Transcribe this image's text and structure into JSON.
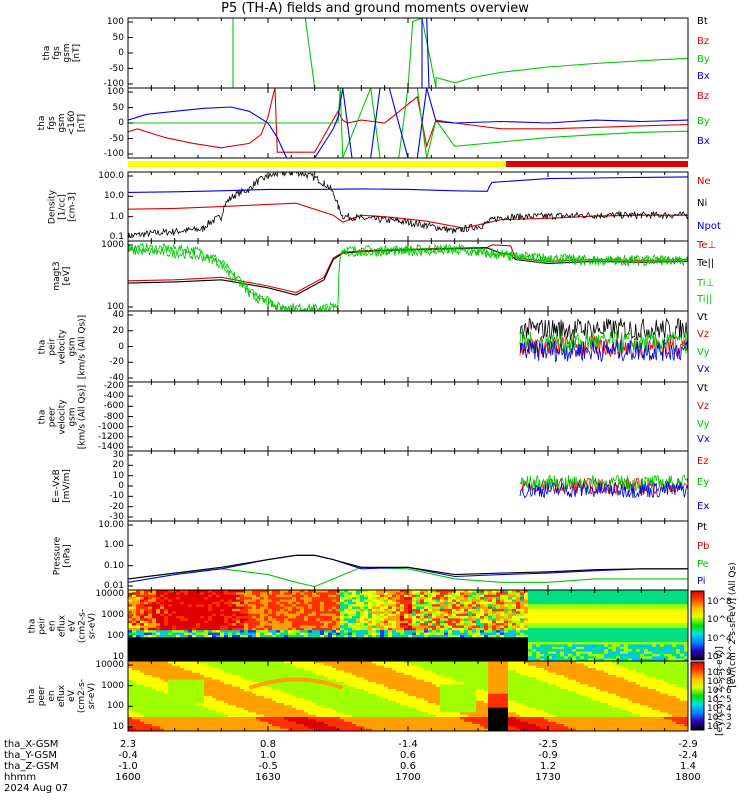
{
  "title": "P5 (TH-A) fields and ground moments overview",
  "x_axis": {
    "rows": [
      {
        "label": "tha_X-GSM",
        "values": [
          "2.3",
          "0.8",
          "-1.4",
          "-2.5",
          "-2.9"
        ]
      },
      {
        "label": "tha_Y-GSM",
        "values": [
          "-0.4",
          "1.0",
          "0.6",
          "-0.9",
          "-2.4"
        ]
      },
      {
        "label": "tha_Z-GSM",
        "values": [
          "-1.0",
          "-0.5",
          "0.6",
          "1.2",
          "1.4"
        ]
      },
      {
        "label": "hhmm",
        "values": [
          "1600",
          "1630",
          "1700",
          "1730",
          "1800"
        ]
      }
    ],
    "date": "2024 Aug 07",
    "range_minutes": [
      0,
      120
    ]
  },
  "colors": {
    "black": "#000000",
    "red": "#e00000",
    "green": "#00c800",
    "blue": "#0000e0",
    "yellow": "#ffff00"
  },
  "chart_data": [
    {
      "type": "line",
      "panel": "B fgs",
      "ylabel": "tha\nfgs\ngsm\n[nT]",
      "yticks": [
        "100",
        "50",
        "0",
        "-50",
        "-100"
      ],
      "ylim": [
        -100,
        100
      ],
      "legend": [
        "Bt",
        "Bz",
        "By",
        "Bx"
      ],
      "series": [
        {
          "name": "By",
          "x": [
            0,
            22.5,
            22.5,
            38,
            40,
            60,
            61,
            63,
            66,
            66,
            70,
            74,
            80,
            90,
            100,
            110,
            120
          ],
          "y": [
            -100,
            -100,
            100,
            100,
            -100,
            -100,
            90,
            100,
            -100,
            -70,
            -85,
            -70,
            -55,
            -40,
            -30,
            -22,
            -15
          ]
        },
        {
          "name": "Bx",
          "x": [
            0,
            63,
            63,
            64,
            64.5,
            120
          ],
          "y": [
            -100,
            -100,
            100,
            100,
            -100,
            -100
          ]
        }
      ]
    },
    {
      "type": "line",
      "panel": "B fgs zoom",
      "ylabel": "tha\nfgs\ngsm\n<160\n[nT]",
      "yticks": [
        "100",
        "50",
        "0",
        "-50",
        "-100"
      ],
      "ylim": [
        -120,
        120
      ],
      "legend": [
        "Bz",
        "By",
        "Bx"
      ],
      "series": [
        {
          "name": "Bz",
          "x": [
            0,
            2,
            8,
            14,
            20,
            26,
            28.5,
            30,
            31,
            31.5,
            32,
            40,
            45,
            46,
            47,
            50,
            55,
            62,
            64,
            66,
            70,
            80,
            90,
            100,
            110,
            120
          ],
          "y": [
            -30,
            -20,
            -50,
            -70,
            -85,
            -70,
            -40,
            20,
            90,
            120,
            -100,
            -100,
            40,
            10,
            0,
            10,
            0,
            90,
            -80,
            10,
            0,
            -20,
            -20,
            -15,
            -10,
            -5
          ]
        },
        {
          "name": "By",
          "x": [
            0,
            45,
            45.5,
            46,
            52,
            54,
            58,
            60,
            62,
            64,
            66,
            70,
            80,
            90,
            100,
            110,
            120
          ],
          "y": [
            0,
            0,
            120,
            -120,
            120,
            -120,
            -120,
            120,
            120,
            -120,
            10,
            -80,
            -65,
            -50,
            -40,
            -32,
            -28
          ]
        },
        {
          "name": "Bx",
          "x": [
            0,
            4,
            10,
            16,
            22,
            26,
            30,
            32,
            34,
            40,
            44,
            45,
            46,
            48,
            52,
            54,
            56,
            60,
            62,
            64,
            66,
            70,
            80,
            90,
            100,
            110,
            120
          ],
          "y": [
            10,
            30,
            40,
            50,
            55,
            40,
            0,
            -50,
            -120,
            -120,
            -20,
            20,
            120,
            -120,
            -120,
            120,
            120,
            -120,
            -120,
            120,
            5,
            0,
            5,
            0,
            10,
            5,
            10
          ]
        }
      ]
    },
    {
      "type": "line",
      "panel": "Density",
      "ylabel": "Density\n[1/cc]\n[cm-3]",
      "yticks": [
        "100.0",
        "10.0",
        "1.0",
        "0.1"
      ],
      "ylim": [
        0.05,
        150
      ],
      "yscale": "log",
      "legend": [
        "Ne",
        "Ni",
        "Npot"
      ],
      "series": [
        {
          "name": "Ne",
          "x": [
            0,
            10,
            20,
            30,
            36,
            44,
            46,
            50,
            56,
            64,
            72,
            80,
            90,
            100,
            110,
            120
          ],
          "y": [
            2.0,
            2.2,
            2.7,
            3.5,
            4.0,
            1.0,
            0.45,
            1.0,
            0.8,
            0.5,
            0.22,
            0.6,
            0.7,
            0.9,
            1.0,
            1.0
          ]
        },
        {
          "name": "Ni",
          "x": [
            0,
            10,
            16,
            20,
            26,
            32,
            36,
            42,
            44,
            45,
            46,
            50,
            58,
            64,
            70,
            76,
            80,
            90,
            100,
            110,
            120
          ],
          "y": [
            0.09,
            0.15,
            0.2,
            0.8,
            20,
            120,
            150,
            40,
            12,
            2.5,
            0.9,
            0.7,
            0.5,
            0.3,
            0.15,
            0.3,
            0.8,
            0.9,
            1.0,
            1.0,
            1.0
          ]
        },
        {
          "name": "Npot",
          "x": [
            0,
            10,
            20,
            30,
            40,
            50,
            60,
            70,
            77,
            77.5,
            78,
            90,
            100,
            110,
            120
          ],
          "y": [
            14,
            15,
            17,
            20,
            20,
            21,
            20,
            17,
            16,
            30,
            45,
            70,
            75,
            80,
            85
          ]
        }
      ]
    },
    {
      "type": "line",
      "panel": "Temperature",
      "ylabel": "magt3\n[eV]",
      "yticks": [
        "1000",
        "100"
      ],
      "ylim": [
        8,
        3500
      ],
      "yscale": "log",
      "legend": [
        "Te⊥",
        "Te||",
        "Ti⊥",
        "Ti||"
      ],
      "series": [
        {
          "name": "Te⊥",
          "x": [
            0,
            10,
            20,
            30,
            36,
            42,
            44,
            46,
            50,
            60,
            70,
            77,
            78,
            82,
            83,
            90,
            100,
            110,
            120
          ],
          "y": [
            110,
            120,
            150,
            70,
            40,
            150,
            800,
            1300,
            1500,
            1700,
            1900,
            2000,
            2500,
            2300,
            800,
            600,
            700,
            650,
            700
          ]
        },
        {
          "name": "Te||",
          "x": [
            0,
            10,
            20,
            30,
            36,
            42,
            44,
            46,
            50,
            60,
            70,
            77,
            80,
            82,
            83,
            90,
            100,
            110,
            120
          ],
          "y": [
            90,
            100,
            120,
            60,
            32,
            120,
            700,
            1200,
            1400,
            1600,
            1800,
            1900,
            1200,
            1100,
            700,
            500,
            600,
            550,
            600
          ]
        },
        {
          "name": "Ti⊥",
          "x": [
            0,
            10,
            14,
            18,
            22,
            26,
            32,
            40,
            45,
            46,
            50,
            60,
            70,
            75,
            82,
            90,
            100,
            110,
            120
          ],
          "y": [
            2000,
            1800,
            1600,
            900,
            200,
            40,
            12,
            10,
            12,
            1600,
            1600,
            1700,
            1800,
            1500,
            1000,
            800,
            700,
            700,
            700
          ]
        },
        {
          "name": "Ti||",
          "x": [
            0,
            10,
            14,
            18,
            22,
            26,
            32,
            40,
            45,
            46,
            50,
            60,
            70,
            75,
            82,
            90,
            100,
            110,
            120
          ],
          "y": [
            1500,
            1200,
            1000,
            700,
            150,
            30,
            10,
            9,
            10,
            1200,
            1300,
            1400,
            1500,
            1200,
            900,
            700,
            600,
            600,
            600
          ]
        }
      ]
    },
    {
      "type": "line",
      "panel": "peir velocity",
      "ylabel": "tha\npeir\nvelocity\ngsm\n[km/s (All Qs)]",
      "yticks": [
        "40",
        "20",
        "0",
        "-20",
        "-40"
      ],
      "ylim": [
        -45,
        45
      ],
      "legend": [
        "Vt",
        "Vz",
        "Vy",
        "Vx"
      ],
      "series": [
        {
          "name": "Vt",
          "x": [
            84,
            120
          ],
          "y": [
            22,
            22
          ]
        },
        {
          "name": "Vz",
          "x": [
            84,
            120
          ],
          "y": [
            0,
            0
          ]
        },
        {
          "name": "Vy",
          "x": [
            84,
            120
          ],
          "y": [
            5,
            5
          ]
        },
        {
          "name": "Vx",
          "x": [
            84,
            120
          ],
          "y": [
            -5,
            -5
          ]
        }
      ]
    },
    {
      "type": "line",
      "panel": "peer velocity",
      "ylabel": "tha\npeer\nvelocity\ngsm\n[km/s (All Qs)]",
      "yticks": [
        "-200",
        "-400",
        "-600",
        "-800",
        "-1000",
        "-1200",
        "-1400"
      ],
      "ylim": [
        -1450,
        -150
      ],
      "legend": [
        "Vt",
        "Vz",
        "Vy",
        "Vx"
      ],
      "series": []
    },
    {
      "type": "line",
      "panel": "E = -VxB",
      "ylabel": "E=-VxB\n[mV/m]",
      "yticks": [
        "30",
        "20",
        "10",
        "0",
        "-10",
        "-20",
        "-30"
      ],
      "ylim": [
        -35,
        35
      ],
      "legend": [
        "Ez",
        "Ey",
        "Ex"
      ],
      "series": [
        {
          "name": "Ez",
          "x": [
            84,
            120
          ],
          "y": [
            0,
            0
          ]
        },
        {
          "name": "Ey",
          "x": [
            84,
            120
          ],
          "y": [
            3,
            3
          ]
        },
        {
          "name": "Ex",
          "x": [
            84,
            120
          ],
          "y": [
            -4,
            -4
          ]
        }
      ]
    },
    {
      "type": "line",
      "panel": "Pressure",
      "ylabel": "Pressure\n[nPa]",
      "yticks": [
        "10.00",
        "1.00",
        "0.10",
        "0.01"
      ],
      "ylim": [
        0.008,
        30
      ],
      "yscale": "log",
      "legend": [
        "Pt",
        "Pb",
        "Pe",
        "Pi"
      ],
      "series": [
        {
          "name": "Pe",
          "x": [
            0,
            10,
            20,
            30,
            36,
            40,
            44,
            50,
            60,
            70,
            80,
            90,
            100,
            110,
            120
          ],
          "y": [
            0.03,
            0.06,
            0.1,
            0.05,
            0.02,
            0.012,
            0.03,
            0.12,
            0.1,
            0.03,
            0.02,
            0.02,
            0.03,
            0.03,
            0.03
          ]
        },
        {
          "name": "Pi",
          "x": [
            0,
            10,
            20,
            30,
            36,
            40,
            44,
            50,
            60,
            70,
            80,
            90,
            100,
            110,
            120
          ],
          "y": [
            0.02,
            0.05,
            0.1,
            0.3,
            0.5,
            0.5,
            0.3,
            0.1,
            0.12,
            0.04,
            0.05,
            0.06,
            0.08,
            0.1,
            0.1
          ]
        },
        {
          "name": "Pt",
          "x": [
            0,
            10,
            20,
            30,
            36,
            40,
            44,
            50,
            60,
            70,
            80,
            90,
            100,
            110,
            120
          ],
          "y": [
            0.03,
            0.06,
            0.12,
            0.3,
            0.5,
            0.5,
            0.3,
            0.12,
            0.12,
            0.05,
            0.06,
            0.07,
            0.09,
            0.1,
            0.1
          ]
        }
      ]
    },
    {
      "type": "heatmap",
      "panel": "peir en eflux",
      "ylabel": "tha\npeir\nen\neflux\neV\n(cm2-s-\nsr-eV)",
      "yticks": [
        "10000",
        "1000",
        "100",
        "10"
      ],
      "ylim": [
        6,
        25000
      ],
      "yscale": "log",
      "colorbar_label": "[eV/(cm^2-s-sr-eV)] (All Qs)",
      "colorbar_ticks": [
        "10^8",
        "10^6",
        "10^4",
        "10^2"
      ]
    },
    {
      "type": "heatmap",
      "panel": "peer en eflux",
      "ylabel": "tha\npeer\nen\neflux\neV\n(cm2-s-\nsr-eV)",
      "yticks": [
        "10000",
        "1000",
        "100",
        "10"
      ],
      "ylim": [
        6,
        25000
      ],
      "yscale": "log",
      "colorbar_label": "[eV/(cm^2-s-sr-eV)]",
      "colorbar_ticks": [
        "10^9",
        "10^8",
        "10^6",
        "10^5",
        "10^4",
        "10^3",
        "10^2"
      ]
    }
  ]
}
